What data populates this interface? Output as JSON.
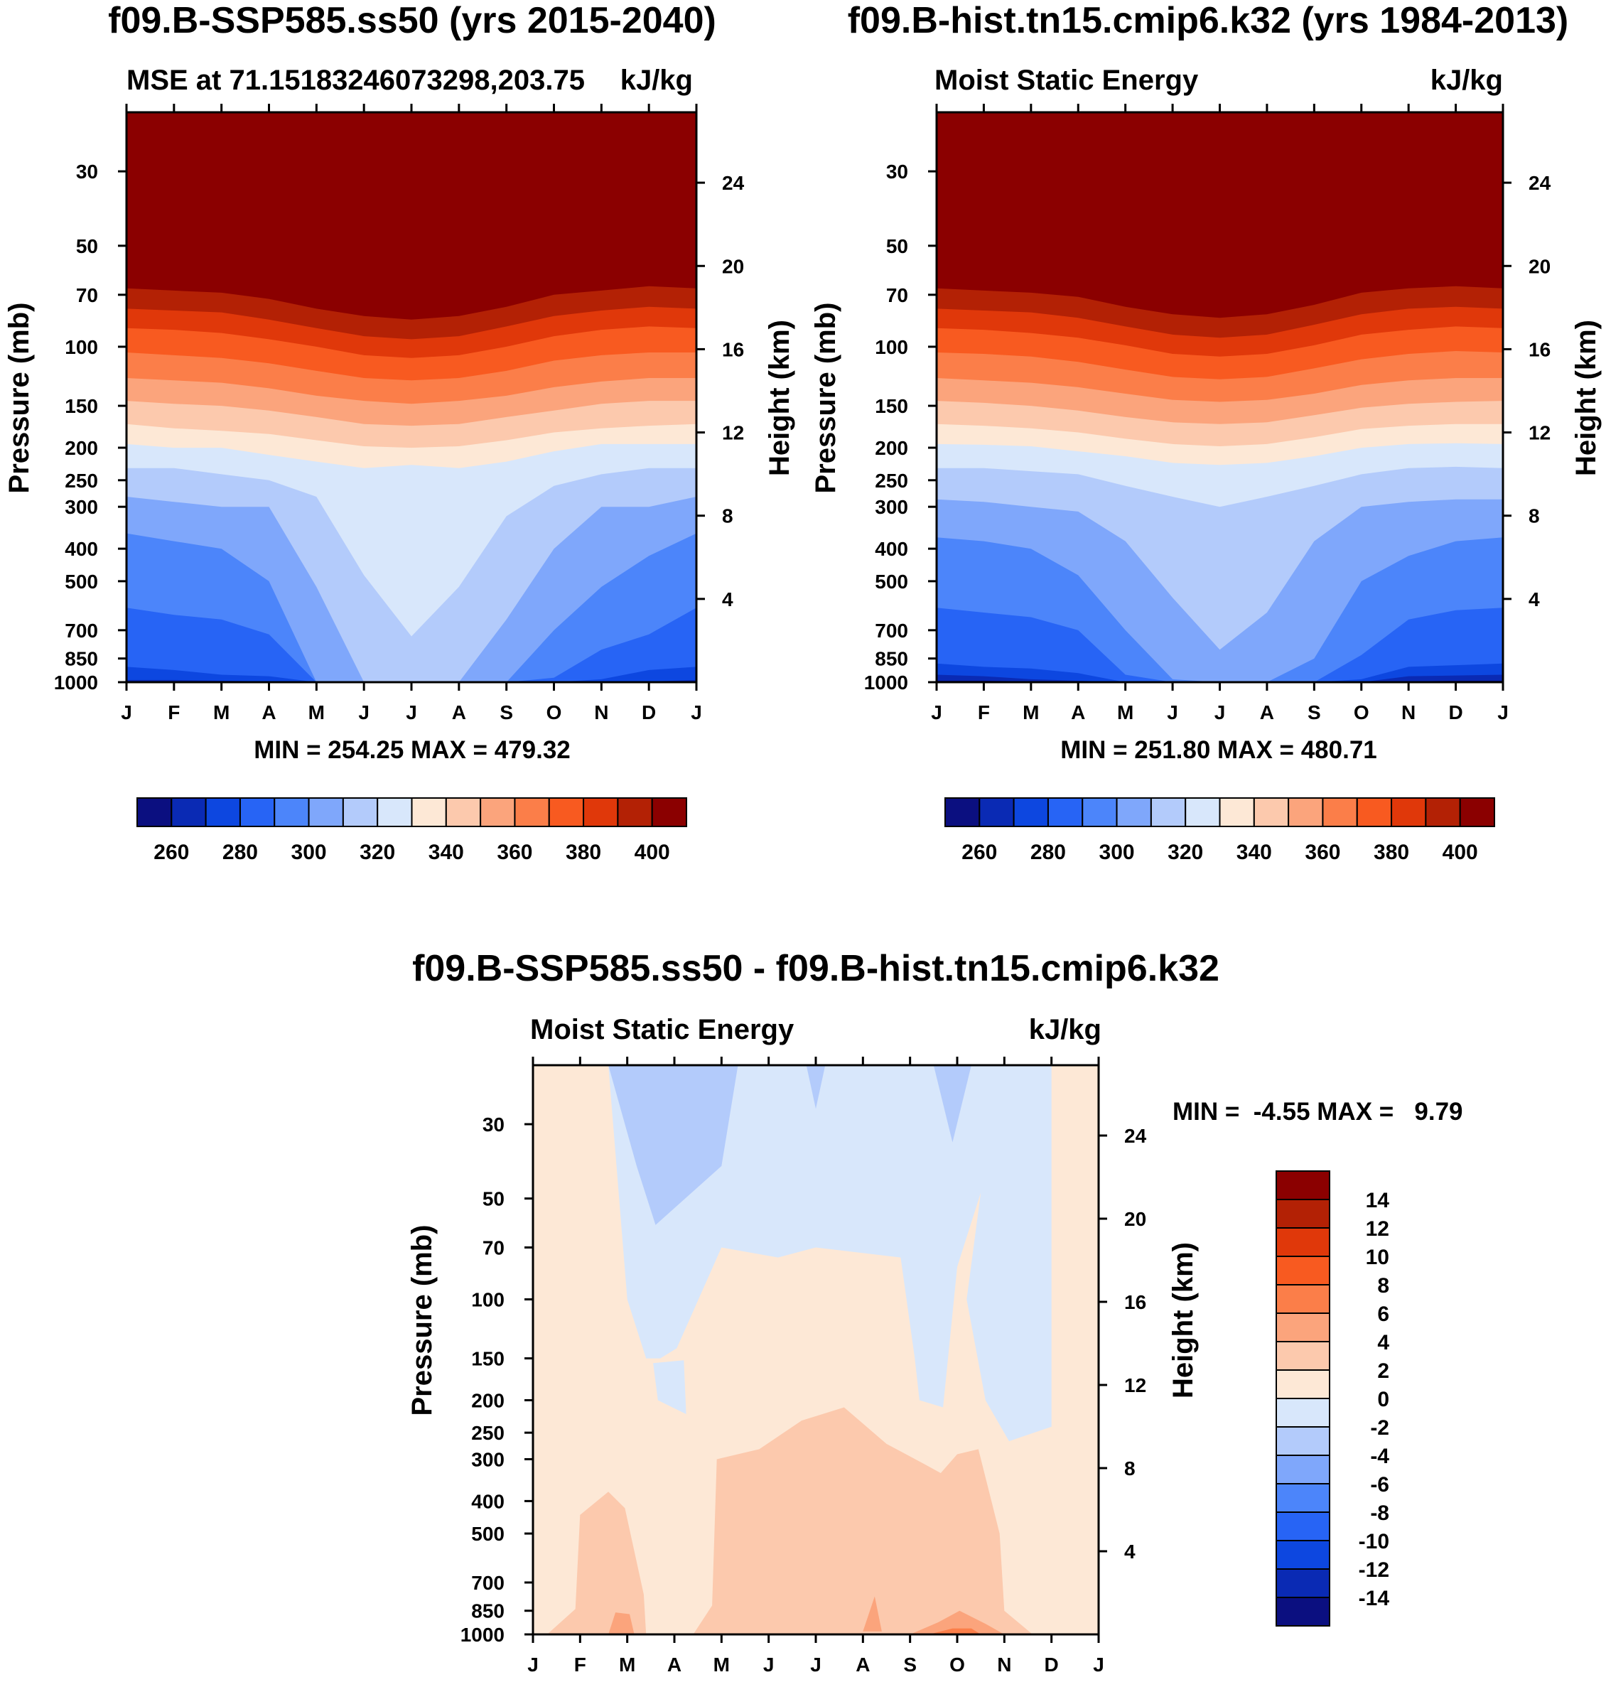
{
  "colors": {
    "seq": [
      "#0b0f80",
      "#0a2ab4",
      "#0d47e0",
      "#2764f5",
      "#4c85fa",
      "#7fa7fb",
      "#b3cbfb",
      "#d8e7fb",
      "#fde8d6",
      "#fcc9ad",
      "#fba47c",
      "#fb7e49",
      "#f85a20",
      "#e0380a",
      "#b32105",
      "#8b0000"
    ],
    "diff": [
      "#0b0f80",
      "#0a2ab4",
      "#0d47e0",
      "#2764f5",
      "#4c85fa",
      "#7fa7fb",
      "#b3cbfb",
      "#d8e7fb",
      "#fde8d6",
      "#fcc9ad",
      "#fba47c",
      "#fb7e49",
      "#f85a20",
      "#e0380a",
      "#b32105",
      "#8b0000"
    ]
  },
  "chart_data": [
    {
      "type": "contour",
      "title": "f09.B-SSP585.ss50 (yrs 2015-2040)",
      "left_string": "MSE at 71.15183246073298,203.75",
      "right_string": "kJ/kg",
      "xlabel": "",
      "ylabel": "Pressure (mb)",
      "ylabel_right": "Height (km)",
      "x_ticks": [
        "J",
        "F",
        "M",
        "A",
        "M",
        "J",
        "J",
        "A",
        "S",
        "O",
        "N",
        "D",
        "J"
      ],
      "y_ticks": [
        "30",
        "50",
        "70",
        "100",
        "150",
        "200",
        "250",
        "300",
        "400",
        "500",
        "700",
        "850",
        "1000"
      ],
      "y_right_ticks": [
        "24",
        "20",
        "16",
        "12",
        "8",
        "4"
      ],
      "stats": "MIN = 254.25 MAX = 479.32",
      "colorbar_labels": [
        "260",
        "280",
        "300",
        "320",
        "340",
        "360",
        "380",
        "400"
      ],
      "levels_kJkg": [
        250,
        260,
        270,
        280,
        290,
        300,
        310,
        320,
        330,
        340,
        350,
        360,
        370,
        380,
        390,
        400
      ],
      "transition_levels_mb_by_month": [
        [
          985,
          985,
          990,
          995,
          1000,
          1000,
          1000,
          1000,
          1000,
          1000,
          1000,
          995,
          985
        ],
        [
          900,
          920,
          950,
          960,
          1000,
          1000,
          1000,
          1000,
          1000,
          1000,
          980,
          920,
          900
        ],
        [
          600,
          630,
          650,
          720,
          1000,
          1000,
          1000,
          1000,
          1000,
          970,
          800,
          720,
          600
        ],
        [
          360,
          380,
          400,
          500,
          1000,
          1000,
          1000,
          1000,
          1000,
          700,
          520,
          420,
          360
        ],
        [
          280,
          290,
          300,
          300,
          520,
          1000,
          1000,
          1000,
          650,
          400,
          300,
          300,
          280
        ],
        [
          230,
          230,
          240,
          250,
          280,
          480,
          730,
          520,
          320,
          260,
          240,
          230,
          230
        ],
        [
          195,
          200,
          200,
          210,
          220,
          230,
          225,
          230,
          220,
          205,
          195,
          195,
          195
        ],
        [
          170,
          175,
          178,
          182,
          190,
          198,
          200,
          198,
          190,
          180,
          175,
          172,
          170
        ],
        [
          145,
          148,
          150,
          155,
          162,
          170,
          172,
          170,
          162,
          155,
          148,
          145,
          145
        ],
        [
          124,
          126,
          128,
          133,
          140,
          145,
          148,
          145,
          140,
          132,
          127,
          124,
          124
        ],
        [
          104,
          106,
          108,
          112,
          118,
          124,
          126,
          124,
          118,
          110,
          106,
          104,
          104
        ],
        [
          88,
          89,
          91,
          95,
          100,
          106,
          108,
          106,
          100,
          93,
          89,
          87,
          88
        ],
        [
          77,
          78,
          79,
          83,
          88,
          93,
          95,
          93,
          87,
          81,
          78,
          76,
          77
        ],
        [
          67,
          68,
          69,
          72,
          77,
          81,
          83,
          81,
          76,
          70,
          68,
          66,
          67
        ]
      ]
    },
    {
      "type": "contour",
      "title": "f09.B-hist.tn15.cmip6.k32 (yrs 1984-2013)",
      "left_string": "Moist Static Energy",
      "right_string": "kJ/kg",
      "ylabel": "Pressure (mb)",
      "ylabel_right": "Height (km)",
      "x_ticks": [
        "J",
        "F",
        "M",
        "A",
        "M",
        "J",
        "J",
        "A",
        "S",
        "O",
        "N",
        "D",
        "J"
      ],
      "y_ticks": [
        "30",
        "50",
        "70",
        "100",
        "150",
        "200",
        "250",
        "300",
        "400",
        "500",
        "700",
        "850",
        "1000"
      ],
      "y_right_ticks": [
        "24",
        "20",
        "16",
        "12",
        "8",
        "4"
      ],
      "stats": "MIN = 251.80 MAX = 480.71",
      "colorbar_labels": [
        "260",
        "280",
        "300",
        "320",
        "340",
        "360",
        "380",
        "400"
      ],
      "levels_kJkg": [
        250,
        260,
        270,
        280,
        290,
        300,
        310,
        320,
        330,
        340,
        350,
        360,
        370,
        380,
        390,
        400
      ],
      "transition_levels_mb_by_month": [
        [
          990,
          990,
          995,
          1000,
          1000,
          1000,
          1000,
          1000,
          1000,
          1000,
          995,
          990,
          990
        ],
        [
          950,
          960,
          980,
          990,
          1000,
          1000,
          1000,
          1000,
          1000,
          1000,
          960,
          955,
          950
        ],
        [
          880,
          900,
          910,
          940,
          1000,
          1000,
          1000,
          1000,
          1000,
          980,
          900,
          890,
          880
        ],
        [
          600,
          620,
          640,
          700,
          950,
          1000,
          1000,
          1000,
          1000,
          830,
          650,
          610,
          600
        ],
        [
          370,
          380,
          400,
          480,
          700,
          980,
          1000,
          1000,
          850,
          500,
          420,
          380,
          370
        ],
        [
          285,
          290,
          300,
          310,
          380,
          560,
          800,
          620,
          380,
          300,
          290,
          285,
          285
        ],
        [
          230,
          230,
          235,
          240,
          260,
          280,
          300,
          280,
          260,
          240,
          230,
          228,
          230
        ],
        [
          195,
          196,
          198,
          205,
          212,
          222,
          225,
          222,
          212,
          200,
          195,
          194,
          195
        ],
        [
          170,
          172,
          175,
          180,
          188,
          195,
          198,
          195,
          186,
          176,
          172,
          170,
          170
        ],
        [
          145,
          147,
          150,
          155,
          162,
          168,
          170,
          168,
          160,
          152,
          148,
          146,
          145
        ],
        [
          124,
          126,
          128,
          132,
          138,
          144,
          146,
          144,
          138,
          130,
          126,
          124,
          124
        ],
        [
          104,
          105,
          107,
          111,
          117,
          123,
          125,
          123,
          116,
          109,
          105,
          103,
          104
        ],
        [
          88,
          89,
          91,
          94,
          99,
          105,
          107,
          105,
          99,
          92,
          89,
          87,
          88
        ],
        [
          77,
          78,
          79,
          82,
          87,
          92,
          94,
          92,
          86,
          80,
          77,
          76,
          77
        ],
        [
          67,
          68,
          69,
          71,
          76,
          80,
          82,
          80,
          75,
          69,
          67,
          66,
          67
        ]
      ]
    },
    {
      "type": "contour",
      "title": "f09.B-SSP585.ss50 - f09.B-hist.tn15.cmip6.k32",
      "left_string": "Moist Static Energy",
      "right_string": "kJ/kg",
      "ylabel": "Pressure (mb)",
      "ylabel_right": "Height (km)",
      "x_ticks": [
        "J",
        "F",
        "M",
        "A",
        "M",
        "J",
        "J",
        "A",
        "S",
        "O",
        "N",
        "D",
        "J"
      ],
      "y_ticks": [
        "30",
        "50",
        "70",
        "100",
        "150",
        "200",
        "250",
        "300",
        "400",
        "500",
        "700",
        "850",
        "1000"
      ],
      "y_right_ticks": [
        "24",
        "20",
        "16",
        "12",
        "8",
        "4"
      ],
      "stats": "MIN =  -4.55 MAX =   9.79",
      "colorbar_labels": [
        "14",
        "12",
        "10",
        "8",
        "6",
        "4",
        "2",
        "0",
        "-2",
        "-4",
        "-6",
        "-8",
        "-10",
        "-12",
        "-14"
      ],
      "background_level": "0 to 2",
      "regions": [
        {
          "level": "-2 to 0",
          "points_month_mb": [
            [
              1.6,
              20
            ],
            [
              11.0,
              20
            ],
            [
              11.0,
              240
            ],
            [
              10.1,
              265
            ],
            [
              9.6,
              200
            ],
            [
              9.2,
              100
            ],
            [
              9.5,
              48
            ],
            [
              9.0,
              80
            ],
            [
              8.7,
              210
            ],
            [
              8.2,
              200
            ],
            [
              8.1,
              150
            ],
            [
              7.8,
              75
            ],
            [
              6.0,
              70
            ],
            [
              5.2,
              75
            ],
            [
              4.0,
              70
            ],
            [
              3.05,
              140
            ],
            [
              2.7,
              150
            ],
            [
              2.4,
              150
            ],
            [
              2.0,
              100
            ],
            [
              1.6,
              20
            ]
          ]
        },
        {
          "level": "-2 to 0",
          "points_month_mb": [
            [
              2.55,
              155
            ],
            [
              3.2,
              152
            ],
            [
              3.25,
              220
            ],
            [
              2.65,
              200
            ]
          ]
        },
        {
          "level": "-4 to -2",
          "points_month_mb": [
            [
              1.6,
              20
            ],
            [
              4.35,
              20
            ],
            [
              4.0,
              40
            ],
            [
              2.6,
              60
            ],
            [
              2.2,
              40
            ]
          ]
        },
        {
          "level": "-4 to -2",
          "points_month_mb": [
            [
              5.8,
              20
            ],
            [
              6.2,
              20
            ],
            [
              6.0,
              27
            ]
          ]
        },
        {
          "level": "-4 to -2",
          "points_month_mb": [
            [
              8.5,
              20
            ],
            [
              9.3,
              20
            ],
            [
              8.9,
              34
            ]
          ]
        },
        {
          "level": "2 to 4",
          "points_month_mb": [
            [
              0.3,
              1000
            ],
            [
              0.9,
              840
            ],
            [
              1.0,
              440
            ],
            [
              1.6,
              375
            ],
            [
              1.95,
              420
            ],
            [
              2.35,
              760
            ],
            [
              2.4,
              1000
            ]
          ]
        },
        {
          "level": "2 to 4",
          "points_month_mb": [
            [
              3.4,
              1000
            ],
            [
              3.8,
              820
            ],
            [
              3.9,
              300
            ],
            [
              4.8,
              280
            ],
            [
              5.7,
              230
            ],
            [
              6.6,
              210
            ],
            [
              7.5,
              270
            ],
            [
              8.3,
              310
            ],
            [
              8.65,
              330
            ],
            [
              9.0,
              290
            ],
            [
              9.45,
              280
            ],
            [
              9.9,
              500
            ],
            [
              10.0,
              850
            ],
            [
              10.6,
              1000
            ]
          ]
        },
        {
          "level": "4 to 6",
          "points_month_mb": [
            [
              1.6,
              1000
            ],
            [
              1.75,
              860
            ],
            [
              2.05,
              870
            ],
            [
              2.15,
              1000
            ]
          ]
        },
        {
          "level": "4 to 6",
          "points_month_mb": [
            [
              7.0,
              980
            ],
            [
              7.25,
              770
            ],
            [
              7.4,
              980
            ]
          ]
        },
        {
          "level": "4 to 6",
          "points_month_mb": [
            [
              8.0,
              1000
            ],
            [
              8.6,
              920
            ],
            [
              9.05,
              850
            ],
            [
              9.6,
              930
            ],
            [
              10.0,
              1000
            ]
          ]
        },
        {
          "level": "6 to 8",
          "points_month_mb": [
            [
              8.4,
              1000
            ],
            [
              8.9,
              960
            ],
            [
              9.3,
              960
            ],
            [
              9.5,
              1000
            ]
          ]
        }
      ]
    }
  ]
}
